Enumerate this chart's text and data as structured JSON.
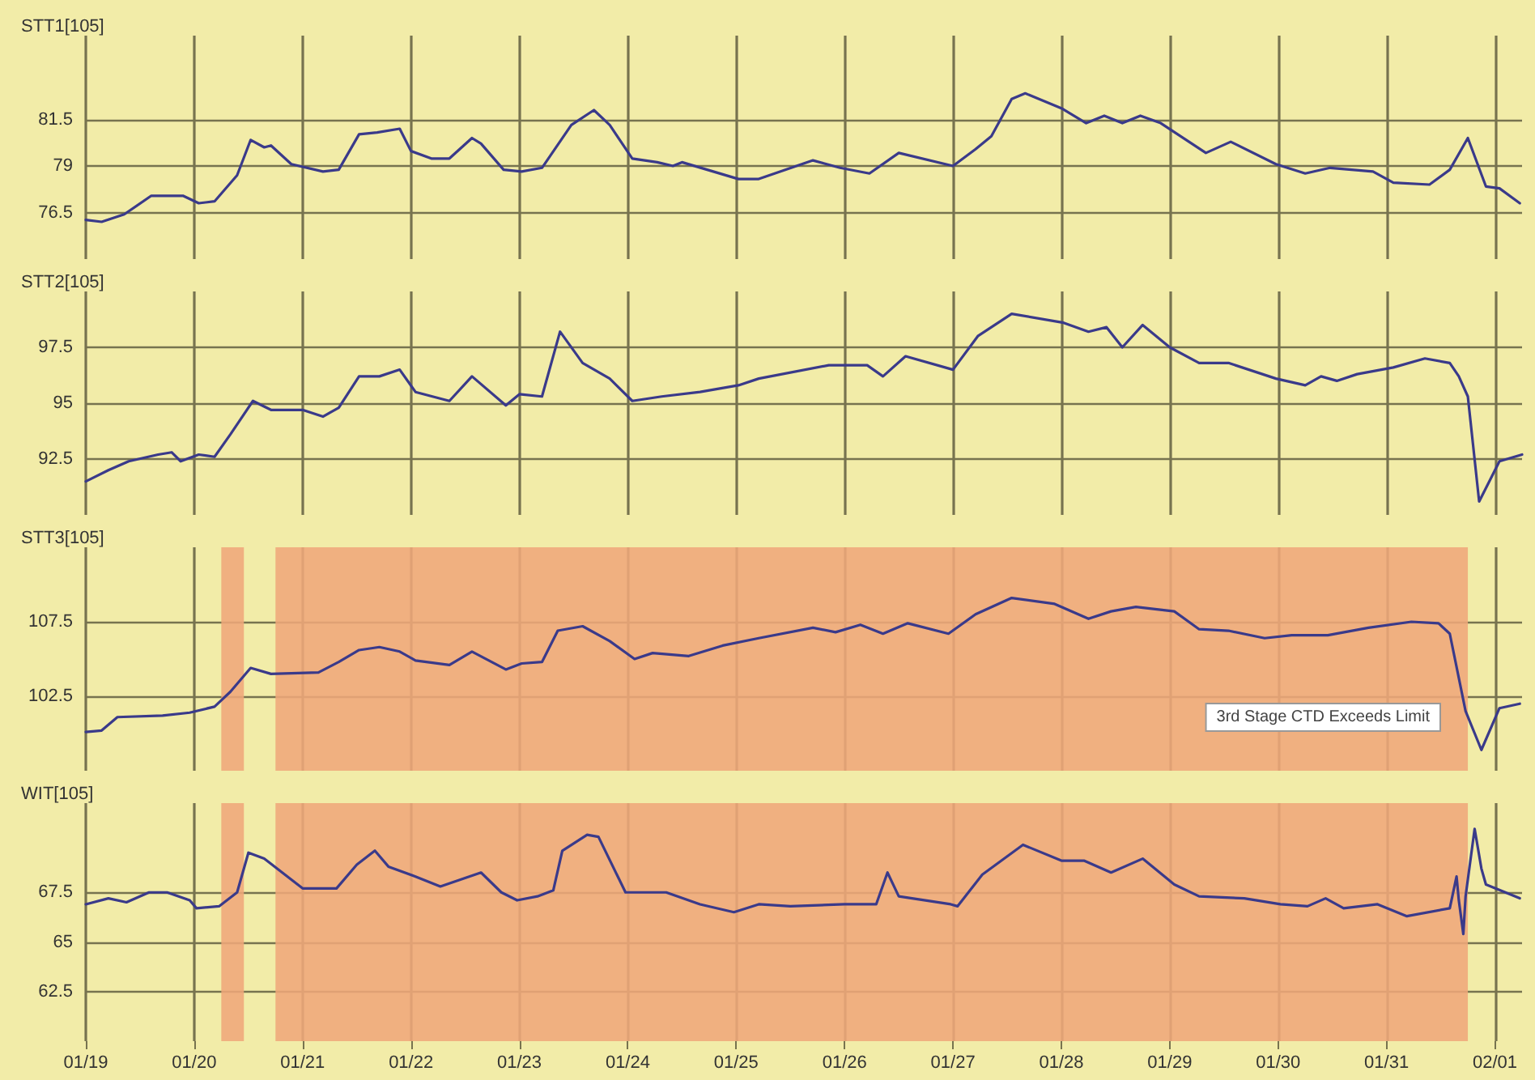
{
  "chart_data": [
    {
      "type": "line",
      "title": "STT1[105]",
      "xlim": [
        "--01-19",
        "--02-01T06:00"
      ],
      "xticks": [
        {
          "value": "--01-19",
          "label": "01/19"
        },
        {
          "value": "--01-20",
          "label": "01/20"
        },
        {
          "value": "--01-21",
          "label": "01/21"
        },
        {
          "value": "--01-22",
          "label": "01/22"
        },
        {
          "value": "--01-23",
          "label": "01/23"
        },
        {
          "value": "--01-24",
          "label": "01/24"
        },
        {
          "value": "--01-25",
          "label": "01/25"
        },
        {
          "value": "--01-26",
          "label": "01/26"
        },
        {
          "value": "--01-27",
          "label": "01/27"
        },
        {
          "value": "--01-28",
          "label": "01/28"
        },
        {
          "value": "--01-29",
          "label": "01/29"
        },
        {
          "value": "--01-30",
          "label": "01/30"
        },
        {
          "value": "--01-31",
          "label": "01/31"
        },
        {
          "value": "--02-01",
          "label": "02/01"
        }
      ],
      "ylim": [
        74,
        86
      ],
      "yticks": [
        76.5,
        79,
        81.5
      ],
      "grid": true,
      "marker": "none",
      "tick_labels": "y",
      "series": [
        {
          "color": "#3a3a8a",
          "x": [
            "--01-19",
            "--01-19T03:30",
            "--01-19T08:30",
            "--01-19T14:30",
            "--01-19T21:30",
            "--01-20T01:00",
            "--01-20T04:30",
            "--01-20T09:30",
            "--01-20T12:30",
            "--01-20T15:30",
            "--01-20T17:00",
            "--01-20T21:30",
            "--01-21T04:30",
            "--01-21T08:00",
            "--01-21T12:30",
            "--01-21T16:30",
            "--01-21T21:30",
            "--01-22",
            "--01-22T04:30",
            "--01-22T08:30",
            "--01-22T13:30",
            "--01-22T15:30",
            "--01-22T20:30",
            "--01-23T00:30",
            "--01-23T05:00",
            "--01-23T11:30",
            "--01-23T16:30",
            "--01-23T20:00",
            "--01-24T01:00",
            "--01-24T06:30",
            "--01-24T10:00",
            "--01-24T12:00",
            "--01-25T00:30",
            "--01-25T05:00",
            "--01-25T17:00",
            "--01-25T23:00",
            "--01-26T05:30",
            "--01-26T12:00",
            "--01-27",
            "--01-27T05:00",
            "--01-27T08:30",
            "--01-27T13:00",
            "--01-27T16:00",
            "--01-28",
            "--01-28T05:30",
            "--01-28T09:30",
            "--01-28T13:30",
            "--01-28T17:30",
            "--01-28T22:00",
            "--01-29T08:00",
            "--01-29T13:30",
            "--01-29T23:30",
            "--01-30T06:00",
            "--01-30T11:30",
            "--01-30T21:00",
            "--01-31T01:30",
            "--01-31T09:30",
            "--01-31T14:00",
            "--01-31T18:00",
            "--01-31T22:00",
            "--02-01T01:00",
            "--02-01T05:30"
          ],
          "values": [
            76.1,
            76.0,
            76.4,
            77.4,
            77.4,
            77.0,
            77.1,
            78.5,
            80.4,
            80.0,
            80.1,
            79.1,
            78.7,
            78.8,
            80.7,
            80.8,
            81.0,
            79.8,
            79.4,
            79.4,
            80.5,
            80.2,
            78.8,
            78.7,
            78.9,
            81.2,
            82.0,
            81.2,
            79.4,
            79.2,
            79.0,
            79.2,
            78.3,
            78.3,
            79.3,
            78.9,
            78.6,
            79.7,
            79.0,
            79.9,
            80.6,
            82.6,
            82.9,
            82.1,
            81.3,
            81.7,
            81.3,
            81.7,
            81.3,
            79.7,
            80.3,
            79.1,
            78.6,
            78.9,
            78.7,
            78.1,
            78.0,
            78.8,
            80.5,
            77.9,
            77.8,
            77.0
          ]
        }
      ]
    },
    {
      "type": "line",
      "title": "STT2[105]",
      "xlim": [
        "--01-19",
        "--02-01T06:00"
      ],
      "xticks": [
        {
          "value": "--01-19",
          "label": "01/19"
        },
        {
          "value": "--01-20",
          "label": "01/20"
        },
        {
          "value": "--01-21",
          "label": "01/21"
        },
        {
          "value": "--01-22",
          "label": "01/22"
        },
        {
          "value": "--01-23",
          "label": "01/23"
        },
        {
          "value": "--01-24",
          "label": "01/24"
        },
        {
          "value": "--01-25",
          "label": "01/25"
        },
        {
          "value": "--01-26",
          "label": "01/26"
        },
        {
          "value": "--01-27",
          "label": "01/27"
        },
        {
          "value": "--01-28",
          "label": "01/28"
        },
        {
          "value": "--01-29",
          "label": "01/29"
        },
        {
          "value": "--01-30",
          "label": "01/30"
        },
        {
          "value": "--01-31",
          "label": "01/31"
        },
        {
          "value": "--02-01",
          "label": "02/01"
        }
      ],
      "ylim": [
        90,
        100
      ],
      "yticks": [
        92.5,
        95,
        97.5
      ],
      "grid": true,
      "marker": "none",
      "tick_labels": "y",
      "series": [
        {
          "color": "#3a3a8a",
          "x": [
            "--01-19",
            "--01-19T05:00",
            "--01-19T09:30",
            "--01-19T16:00",
            "--01-19T19:00",
            "--01-19T21:00",
            "--01-20T01:00",
            "--01-20T04:30",
            "--01-20T08:00",
            "--01-20T13:00",
            "--01-20T17:00",
            "--01-21",
            "--01-21T04:30",
            "--01-21T08:00",
            "--01-21T12:30",
            "--01-21T17:00",
            "--01-21T21:30",
            "--01-22T01:00",
            "--01-22T08:30",
            "--01-22T13:30",
            "--01-22T21:00",
            "--01-23",
            "--01-23T05:00",
            "--01-23T09:00",
            "--01-23T14:00",
            "--01-23T20:00",
            "--01-24T01:00",
            "--01-24T07:30",
            "--01-24T16:00",
            "--01-25T00:30",
            "--01-25T05:00",
            "--01-25T20:30",
            "--01-26T05:00",
            "--01-26T08:30",
            "--01-26T13:30",
            "--01-27",
            "--01-27T05:30",
            "--01-27T13:00",
            "--01-28T00:30",
            "--01-28T06:00",
            "--01-28T10:00",
            "--01-28T13:30",
            "--01-28T18:00",
            "--01-29",
            "--01-29T06:30",
            "--01-29T13:00",
            "--01-29T23:30",
            "--01-30T06:00",
            "--01-30T09:30",
            "--01-30T13:00",
            "--01-30T17:30",
            "--01-31T01:30",
            "--01-31T08:30",
            "--01-31T14:00",
            "--01-31T16:00",
            "--01-31T18:00",
            "--01-31T20:30",
            "--02-01T01:00",
            "--02-01T06:00"
          ],
          "values": [
            91.5,
            92.0,
            92.4,
            92.7,
            92.8,
            92.4,
            92.7,
            92.6,
            93.6,
            95.1,
            94.7,
            94.7,
            94.4,
            94.8,
            96.2,
            96.2,
            96.5,
            95.5,
            95.1,
            96.2,
            94.9,
            95.4,
            95.3,
            98.2,
            96.8,
            96.1,
            95.1,
            95.3,
            95.5,
            95.8,
            96.1,
            96.7,
            96.7,
            96.2,
            97.1,
            96.5,
            98.0,
            99.0,
            98.6,
            98.2,
            98.4,
            97.5,
            98.5,
            97.5,
            96.8,
            96.8,
            96.1,
            95.8,
            96.2,
            96.0,
            96.3,
            96.6,
            97.0,
            96.8,
            96.2,
            95.3,
            90.6,
            92.4,
            92.7
          ]
        }
      ]
    },
    {
      "type": "line",
      "title": "STT3[105]",
      "xlim": [
        "--01-19",
        "--02-01T06:00"
      ],
      "xticks": [
        {
          "value": "--01-19",
          "label": "01/19"
        },
        {
          "value": "--01-20",
          "label": "01/20"
        },
        {
          "value": "--01-21",
          "label": "01/21"
        },
        {
          "value": "--01-22",
          "label": "01/22"
        },
        {
          "value": "--01-23",
          "label": "01/23"
        },
        {
          "value": "--01-24",
          "label": "01/24"
        },
        {
          "value": "--01-25",
          "label": "01/25"
        },
        {
          "value": "--01-26",
          "label": "01/26"
        },
        {
          "value": "--01-27",
          "label": "01/27"
        },
        {
          "value": "--01-28",
          "label": "01/28"
        },
        {
          "value": "--01-29",
          "label": "01/29"
        },
        {
          "value": "--01-30",
          "label": "01/30"
        },
        {
          "value": "--01-31",
          "label": "01/31"
        },
        {
          "value": "--02-01",
          "label": "02/01"
        }
      ],
      "ylim": [
        97.5,
        112.5
      ],
      "yticks": [
        102.5,
        107.5
      ],
      "grid": true,
      "marker": "none",
      "tick_labels": "y",
      "bands": [
        {
          "axis": "x",
          "from": "--01-20T06:00",
          "to": "--01-20T11:00",
          "color": "#efa77a"
        },
        {
          "axis": "x",
          "from": "--01-20T18:00",
          "to": "--01-31T18:00",
          "color": "#efa77a"
        }
      ],
      "annotations": [
        "3rd Stage CTD Exceeds Limit"
      ],
      "series": [
        {
          "color": "#3a3a8a",
          "x": [
            "--01-19",
            "--01-19T03:30",
            "--01-19T07:00",
            "--01-19T17:00",
            "--01-19T23:00",
            "--01-20T04:30",
            "--01-20T08:00",
            "--01-20T12:30",
            "--01-20T17:00",
            "--01-21T03:30",
            "--01-21T08:00",
            "--01-21T12:30",
            "--01-21T17:00",
            "--01-21T21:30",
            "--01-22T01:00",
            "--01-22T08:30",
            "--01-22T13:30",
            "--01-22T21:00",
            "--01-23T00:30",
            "--01-23T05:00",
            "--01-23T08:30",
            "--01-23T14:00",
            "--01-23T20:00",
            "--01-24T01:30",
            "--01-24T05:30",
            "--01-24T13:30",
            "--01-24T21:00",
            "--01-25T05:00",
            "--01-25T17:00",
            "--01-25T22:00",
            "--01-26T03:30",
            "--01-26T08:30",
            "--01-26T14:00",
            "--01-26T23:00",
            "--01-27T05:00",
            "--01-27T13:00",
            "--01-27T22:30",
            "--01-28T06:00",
            "--01-28T11:00",
            "--01-28T16:30",
            "--01-29T01:00",
            "--01-29T06:30",
            "--01-29T13:00",
            "--01-29T21:00",
            "--01-30T03:00",
            "--01-30T11:00",
            "--01-30T20:00",
            "--01-31T05:30",
            "--01-31T11:30",
            "--01-31T14:00",
            "--01-31T17:30",
            "--01-31T21:00",
            "--02-01T01:00",
            "--02-01T05:30"
          ],
          "values": [
            100.1,
            100.2,
            101.1,
            101.2,
            101.4,
            101.8,
            102.8,
            104.4,
            104.0,
            104.1,
            104.8,
            105.6,
            105.8,
            105.5,
            104.9,
            104.6,
            105.5,
            104.3,
            104.7,
            104.8,
            106.9,
            107.2,
            106.2,
            105.0,
            105.4,
            105.2,
            105.9,
            106.4,
            107.1,
            106.8,
            107.3,
            106.7,
            107.4,
            106.7,
            108.0,
            109.1,
            108.7,
            107.7,
            108.2,
            108.5,
            108.2,
            107.0,
            106.9,
            106.4,
            106.6,
            106.6,
            107.1,
            107.5,
            107.4,
            106.7,
            101.5,
            98.9,
            101.7,
            102.0
          ]
        }
      ]
    },
    {
      "type": "line",
      "title": "WIT[105]",
      "xlim": [
        "--01-19",
        "--02-01T06:00"
      ],
      "xticks": [
        {
          "value": "--01-19",
          "label": "01/19"
        },
        {
          "value": "--01-20",
          "label": "01/20"
        },
        {
          "value": "--01-21",
          "label": "01/21"
        },
        {
          "value": "--01-22",
          "label": "01/22"
        },
        {
          "value": "--01-23",
          "label": "01/23"
        },
        {
          "value": "--01-24",
          "label": "01/24"
        },
        {
          "value": "--01-25",
          "label": "01/25"
        },
        {
          "value": "--01-26",
          "label": "01/26"
        },
        {
          "value": "--01-27",
          "label": "01/27"
        },
        {
          "value": "--01-28",
          "label": "01/28"
        },
        {
          "value": "--01-29",
          "label": "01/29"
        },
        {
          "value": "--01-30",
          "label": "01/30"
        },
        {
          "value": "--01-31",
          "label": "01/31"
        },
        {
          "value": "--02-01",
          "label": "02/01"
        }
      ],
      "ylim": [
        60,
        72
      ],
      "yticks": [
        62.5,
        65,
        67.5
      ],
      "grid": true,
      "marker": "none",
      "bands": [
        {
          "axis": "x",
          "from": "--01-20T06:00",
          "to": "--01-20T11:00",
          "color": "#efa77a"
        },
        {
          "axis": "x",
          "from": "--01-20T18:00",
          "to": "--01-31T18:00",
          "color": "#efa77a"
        }
      ],
      "series": [
        {
          "color": "#3a3a8a",
          "x": [
            "--01-19",
            "--01-19T05:00",
            "--01-19T09:00",
            "--01-19T14:00",
            "--01-19T18:00",
            "--01-19T23:00",
            "--01-20T00:30",
            "--01-20T05:30",
            "--01-20T09:30",
            "--01-20T12:00",
            "--01-20T15:30",
            "--01-21",
            "--01-21T07:30",
            "--01-21T12:00",
            "--01-21T16:00",
            "--01-21T19:00",
            "--01-22T01:00",
            "--01-22T06:30",
            "--01-22T15:30",
            "--01-22T20:00",
            "--01-22T23:30",
            "--01-23T04:00",
            "--01-23T07:30",
            "--01-23T09:30",
            "--01-23T15:00",
            "--01-23T17:30",
            "--01-23T23:30",
            "--01-24T08:30",
            "--01-24T16:00",
            "--01-24T23:30",
            "--01-25T05:00",
            "--01-25T12:00",
            "--01-26",
            "--01-26T07:00",
            "--01-26T09:30",
            "--01-26T12:00",
            "--01-26T23:30",
            "--01-27T01:00",
            "--01-27T06:30",
            "--01-27T15:30",
            "--01-28",
            "--01-28T05:00",
            "--01-28T11:00",
            "--01-28T18:00",
            "--01-29T01:00",
            "--01-29T06:30",
            "--01-29T16:30",
            "--01-30T00:30",
            "--01-30T06:30",
            "--01-30T10:30",
            "--01-30T14:30",
            "--01-30T22:00",
            "--01-31T04:30",
            "--01-31T14:00",
            "--01-31T15:30",
            "--01-31T16:00",
            "--01-31T17:00",
            "--01-31T17:30",
            "--01-31T19:30",
            "--01-31T21:00",
            "--01-31T22:00",
            "--02-01T05:30"
          ],
          "values": [
            66.9,
            67.2,
            67.0,
            67.5,
            67.5,
            67.1,
            66.7,
            66.8,
            67.5,
            69.5,
            69.2,
            67.7,
            67.7,
            68.9,
            69.6,
            68.8,
            68.3,
            67.8,
            68.5,
            67.5,
            67.1,
            67.3,
            67.6,
            69.6,
            70.4,
            70.3,
            67.5,
            67.5,
            66.9,
            66.5,
            66.9,
            66.8,
            66.9,
            66.9,
            68.5,
            67.3,
            66.9,
            66.8,
            68.4,
            69.9,
            69.1,
            69.1,
            68.5,
            69.2,
            67.9,
            67.3,
            67.2,
            66.9,
            66.8,
            67.2,
            66.7,
            66.9,
            66.3,
            66.7,
            68.3,
            67.1,
            65.4,
            67.3,
            70.7,
            68.7,
            67.9,
            67.2
          ]
        }
      ]
    }
  ]
}
